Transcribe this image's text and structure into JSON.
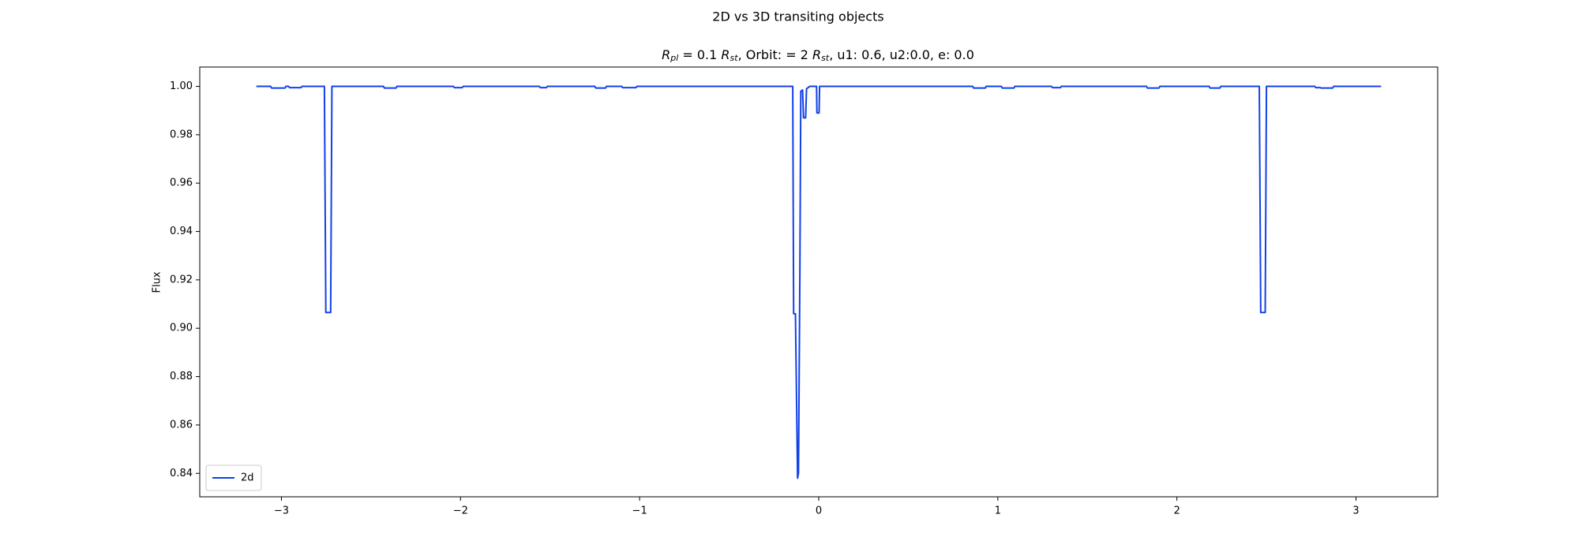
{
  "chart_data": {
    "type": "line",
    "title": "2D vs 3D transiting objects",
    "subtitle": [
      "R",
      "pl",
      " = 0.1 ",
      "R",
      "st",
      ", Orbit: = 2 ",
      "R",
      "st",
      ", u1: 0.6, u2:0.0, e: 0.0"
    ],
    "ylabel": "Flux",
    "x": [
      -3.14,
      -3.06,
      -3.055,
      -2.98,
      -2.975,
      -2.96,
      -2.955,
      -2.89,
      -2.885,
      -2.76,
      -2.752,
      -2.725,
      -2.718,
      -2.43,
      -2.425,
      -2.36,
      -2.355,
      -2.04,
      -2.035,
      -1.99,
      -1.985,
      -1.56,
      -1.555,
      -1.52,
      -1.515,
      -1.25,
      -1.245,
      -1.19,
      -1.185,
      -1.1,
      -1.095,
      -1.02,
      -1.015,
      -0.145,
      -0.14,
      -0.13,
      -0.118,
      -0.113,
      -0.105,
      -0.1,
      -0.09,
      -0.085,
      -0.073,
      -0.068,
      -0.05,
      -0.012,
      -0.01,
      0.002,
      0.005,
      0.86,
      0.865,
      0.93,
      0.935,
      1.02,
      1.025,
      1.09,
      1.095,
      1.3,
      1.305,
      1.35,
      1.355,
      1.83,
      1.835,
      1.9,
      1.905,
      2.18,
      2.185,
      2.24,
      2.245,
      2.46,
      2.468,
      2.493,
      2.5,
      2.77,
      2.775,
      2.8,
      2.805,
      2.87,
      2.875,
      3.14
    ],
    "series": [
      {
        "name": "2d",
        "color": "#1240e8",
        "values": [
          1,
          1,
          0.9993,
          0.9993,
          1,
          1,
          0.9995,
          0.9995,
          1,
          1,
          0.9065,
          0.9065,
          1,
          1,
          0.9993,
          0.9993,
          1,
          1,
          0.9995,
          0.9995,
          1,
          1,
          0.9995,
          0.9995,
          1,
          1,
          0.9993,
          0.9993,
          1,
          1,
          0.9995,
          0.9995,
          1,
          1,
          0.906,
          0.906,
          0.838,
          0.84,
          0.925,
          0.998,
          0.9985,
          0.987,
          0.987,
          0.999,
          1,
          1,
          0.989,
          0.989,
          1,
          1,
          0.9993,
          0.9993,
          1,
          1,
          0.9993,
          0.9993,
          1,
          1,
          0.9995,
          0.9995,
          1,
          1,
          0.9993,
          0.9993,
          1,
          1,
          0.9993,
          0.9993,
          1,
          1,
          0.9065,
          0.9065,
          1,
          1,
          0.9995,
          0.9995,
          0.9993,
          0.9993,
          1,
          1
        ]
      }
    ],
    "xlim": [
      -3.456,
      3.456
    ],
    "xticks": [
      {
        "value": -3,
        "label": "−3"
      },
      {
        "value": -2,
        "label": "−2"
      },
      {
        "value": -1,
        "label": "−1"
      },
      0,
      1,
      2,
      3
    ],
    "ylim": [
      0.8303,
      1.008
    ],
    "yticks": [
      0.84,
      0.86,
      0.88,
      {
        "value": 0.9,
        "label": "0.90"
      },
      0.92,
      0.94,
      0.96,
      0.98,
      {
        "value": 1,
        "label": "1.00"
      }
    ],
    "grid": false,
    "legend": "lower left"
  }
}
